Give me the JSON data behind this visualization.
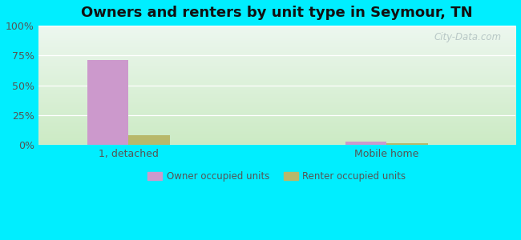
{
  "title": "Owners and renters by unit type in Seymour, TN",
  "categories": [
    "1, detached",
    "Mobile home"
  ],
  "owner_values": [
    71.0,
    2.5
  ],
  "renter_values": [
    8.0,
    1.5
  ],
  "owner_color": "#cc99cc",
  "renter_color": "#b8b86a",
  "outer_bg": "#00eeff",
  "ylim": [
    0,
    100
  ],
  "yticks": [
    0,
    25,
    50,
    75,
    100
  ],
  "ytick_labels": [
    "0%",
    "25%",
    "50%",
    "75%",
    "100%"
  ],
  "legend_labels": [
    "Owner occupied units",
    "Renter occupied units"
  ],
  "bar_width": 0.32,
  "group_positions": [
    1.0,
    3.0
  ],
  "xlim": [
    0.3,
    4.0
  ],
  "title_fontsize": 13,
  "axis_label_fontsize": 9,
  "watermark": "City-Data.com"
}
